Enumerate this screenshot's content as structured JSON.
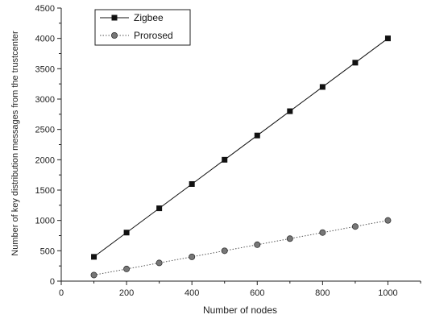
{
  "chart_data": {
    "type": "line",
    "title": "",
    "xlabel": "Number of nodes",
    "ylabel": "Number of key distribution messages from the trustcenter",
    "xlim": [
      0,
      1100
    ],
    "ylim": [
      0,
      4500
    ],
    "xticks": [
      0,
      200,
      400,
      600,
      800,
      1000
    ],
    "yticks": [
      0,
      500,
      1000,
      1500,
      2000,
      2500,
      3000,
      3500,
      4000,
      4500
    ],
    "grid": false,
    "legend_position": "top-left",
    "x": [
      100,
      200,
      300,
      400,
      500,
      600,
      700,
      800,
      900,
      1000
    ],
    "series": [
      {
        "name": "Zigbee",
        "marker": "square",
        "line_style": "solid",
        "color": "#111111",
        "values": [
          400,
          800,
          1200,
          1600,
          2000,
          2400,
          2800,
          3200,
          3600,
          4000
        ]
      },
      {
        "name": "Prorosed",
        "marker": "circle",
        "line_style": "dotted",
        "color": "#555555",
        "values": [
          100,
          200,
          300,
          400,
          500,
          600,
          700,
          800,
          900,
          1000
        ]
      }
    ]
  }
}
